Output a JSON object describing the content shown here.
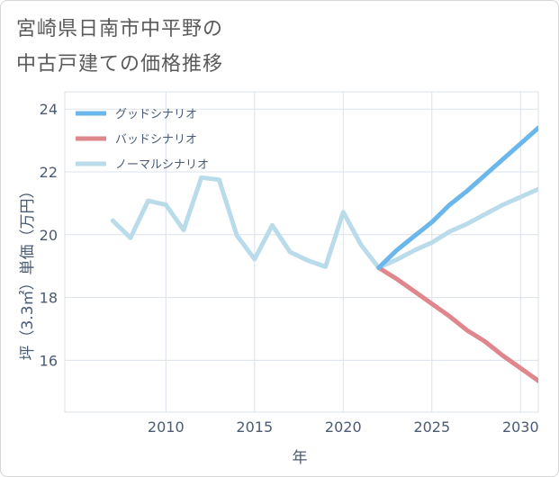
{
  "title": {
    "line1": "宮崎県日南市中平野の",
    "line2": "中古戸建ての価格推移"
  },
  "chart_data": {
    "type": "line",
    "xlabel": "年",
    "ylabel": "坪（3.3㎡）単価（万円）",
    "xlim": [
      2004.3,
      2031.0
    ],
    "ylim": [
      14.35,
      24.55
    ],
    "xticks": [
      2010,
      2015,
      2020,
      2025,
      2030
    ],
    "yticks": [
      16,
      18,
      20,
      22,
      24
    ],
    "xtick_labels": [
      "2010",
      "2015",
      "2020",
      "2025",
      "2030"
    ],
    "ytick_labels": [
      "16",
      "18",
      "20",
      "22",
      "24"
    ],
    "grid": true,
    "legend_position": "top-left",
    "series": [
      {
        "name": "グッドシナリオ",
        "color": "#6bb7ec",
        "x": [
          2022,
          2023,
          2024,
          2025,
          2026,
          2027,
          2028,
          2029,
          2030,
          2031
        ],
        "y": [
          18.95,
          19.5,
          19.95,
          20.4,
          20.95,
          21.4,
          21.9,
          22.4,
          22.9,
          23.4
        ]
      },
      {
        "name": "バッドシナリオ",
        "color": "#e0878e",
        "x": [
          2022,
          2023,
          2024,
          2025,
          2026,
          2027,
          2028,
          2029,
          2030,
          2031
        ],
        "y": [
          18.95,
          18.6,
          18.2,
          17.8,
          17.4,
          16.95,
          16.6,
          16.15,
          15.75,
          15.35
        ]
      },
      {
        "name": "ノーマルシナリオ",
        "color": "#b9dbea",
        "x": [
          2007,
          2008,
          2009,
          2010,
          2011,
          2012,
          2013,
          2014,
          2015,
          2016,
          2017,
          2018,
          2019,
          2020,
          2021,
          2022,
          2023,
          2024,
          2025,
          2026,
          2027,
          2028,
          2029,
          2030,
          2031
        ],
        "y": [
          20.45,
          19.9,
          21.08,
          20.95,
          20.15,
          21.82,
          21.75,
          19.98,
          19.22,
          20.3,
          19.45,
          19.18,
          18.98,
          20.72,
          19.68,
          18.95,
          19.2,
          19.5,
          19.75,
          20.1,
          20.35,
          20.65,
          20.95,
          21.2,
          21.45
        ]
      }
    ]
  }
}
